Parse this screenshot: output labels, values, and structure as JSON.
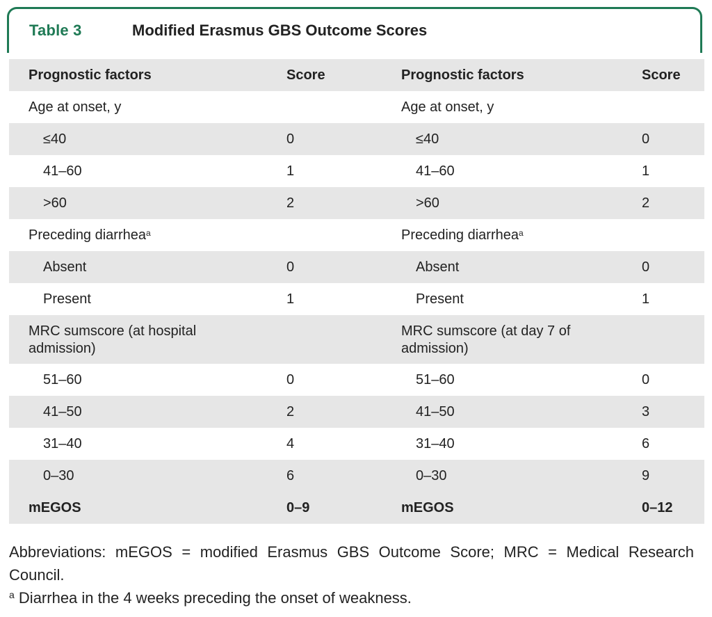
{
  "table": {
    "label": "Table 3",
    "title": "Modified Erasmus GBS Outcome Scores",
    "header": {
      "left_factor": "Prognostic factors",
      "left_score": "Score",
      "right_factor": "Prognostic factors",
      "right_score": "Score"
    },
    "rows": [
      {
        "left": "Age at onset, y",
        "left_score": "",
        "right": "Age at onset, y",
        "right_score": ""
      },
      {
        "left": "≤40",
        "left_score": "0",
        "right": "≤40",
        "right_score": "0"
      },
      {
        "left": "41–60",
        "left_score": "1",
        "right": "41–60",
        "right_score": "1"
      },
      {
        "left": ">60",
        "left_score": "2",
        "right": ">60",
        "right_score": "2"
      },
      {
        "left": "Preceding diarrhea",
        "left_score": "",
        "right": "Preceding diarrhea",
        "right_score": ""
      },
      {
        "left": "Absent",
        "left_score": "0",
        "right": "Absent",
        "right_score": "0"
      },
      {
        "left": "Present",
        "left_score": "1",
        "right": "Present",
        "right_score": "1"
      },
      {
        "left": "MRC sumscore (at hospital admission)",
        "left_score": "",
        "right": "MRC sumscore (at day 7 of admission)",
        "right_score": ""
      },
      {
        "left": "51–60",
        "left_score": "0",
        "right": "51–60",
        "right_score": "0"
      },
      {
        "left": "41–50",
        "left_score": "2",
        "right": "41–50",
        "right_score": "3"
      },
      {
        "left": "31–40",
        "left_score": "4",
        "right": "31–40",
        "right_score": "6"
      },
      {
        "left": "0–30",
        "left_score": "6",
        "right": "0–30",
        "right_score": "9"
      }
    ],
    "total": {
      "left": "mEGOS",
      "left_score": "0–9",
      "right": "mEGOS",
      "right_score": "0–12"
    },
    "footnote_marker": "a"
  },
  "notes": {
    "abbreviations": "Abbreviations: mEGOS = modified Erasmus GBS Outcome Score; MRC = Medical Research Council.",
    "footnote_marker": "a",
    "footnote": "Diarrhea in the 4 weeks preceding the onset of weakness."
  },
  "colors": {
    "accent": "#1f7a55",
    "shade": "#e6e6e6",
    "text": "#222222"
  }
}
